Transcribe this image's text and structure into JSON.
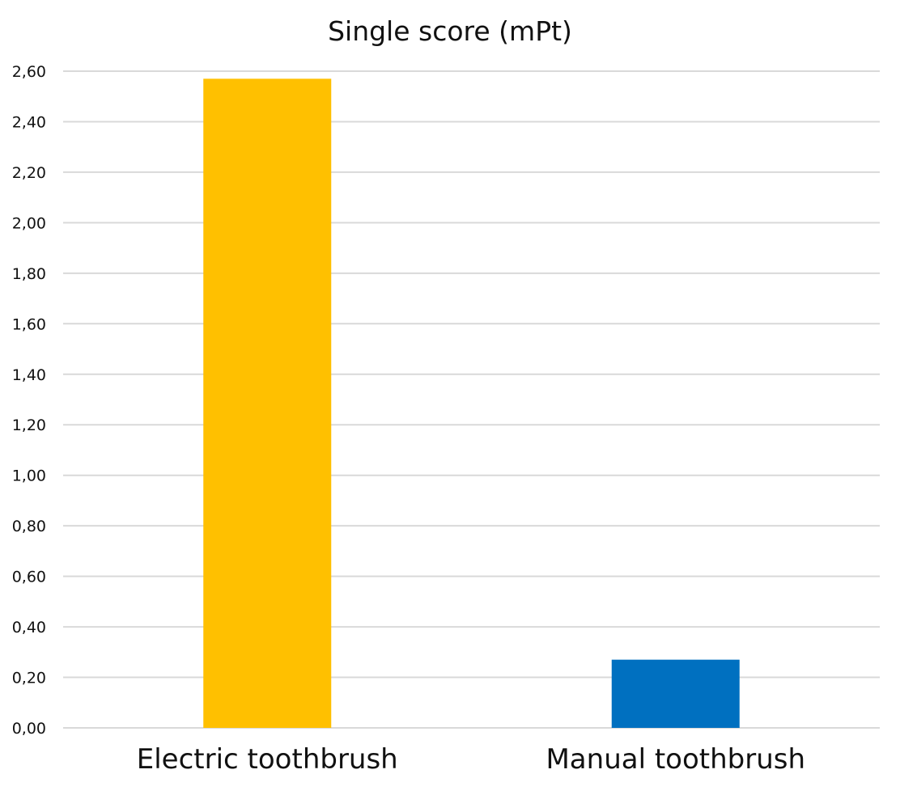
{
  "chart_data": {
    "type": "bar",
    "title": "Single score (mPt)",
    "categories": [
      "Electric toothbrush",
      "Manual toothbrush"
    ],
    "values": [
      2.57,
      0.27
    ],
    "bar_colors": [
      "#FFC000",
      "#0070C0"
    ],
    "ylim": [
      0,
      2.6
    ],
    "y_ticks": [
      0.0,
      0.2,
      0.4,
      0.6,
      0.8,
      1.0,
      1.2,
      1.4,
      1.6,
      1.8,
      2.0,
      2.2,
      2.4,
      2.6
    ],
    "y_tick_labels": [
      "0,00",
      "0,20",
      "0,40",
      "0,60",
      "0,80",
      "1,00",
      "1,20",
      "1,40",
      "1,60",
      "1,80",
      "2,00",
      "2,20",
      "2,40",
      "2,60"
    ],
    "grid": true,
    "legend": "none",
    "xlabel": "",
    "ylabel": ""
  }
}
